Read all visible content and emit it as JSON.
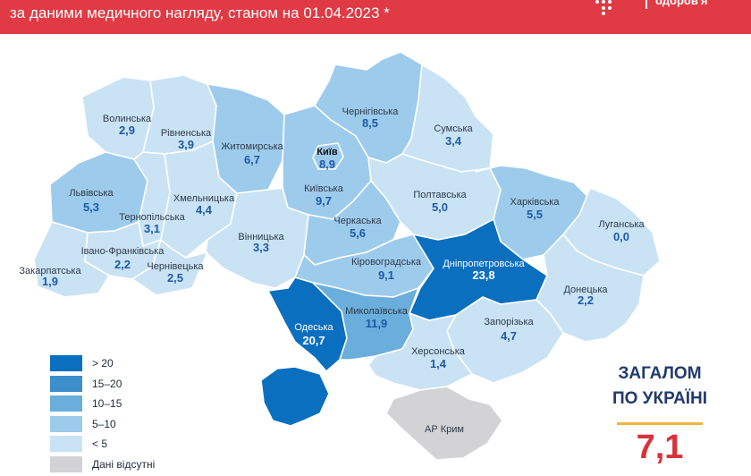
{
  "header": {
    "subtitle": "за даними медичного нагляду, станом на 01.04.2023 *",
    "logo_fragment": "одоров'я"
  },
  "colors": {
    "gt20": "#0b6fbf",
    "15_20": "#3d8fcc",
    "10_15": "#6aaedc",
    "5_10": "#9dcbec",
    "lt5": "#c9e3f5",
    "no_data": "#d3d3d6",
    "header_bg": "#e03a45"
  },
  "regions": [
    {
      "key": "volynska",
      "name": "Волинська",
      "value": "2,9"
    },
    {
      "key": "rivnenska",
      "name": "Рівненська",
      "value": "3,9"
    },
    {
      "key": "zhytomyrska",
      "name": "Житомирська",
      "value": "6,7"
    },
    {
      "key": "kyiv",
      "name": "Київ",
      "value": "8,9"
    },
    {
      "key": "chernihivska",
      "name": "Чернігівська",
      "value": "8,5"
    },
    {
      "key": "sumska",
      "name": "Сумська",
      "value": "3,4"
    },
    {
      "key": "lvivska",
      "name": "Львівська",
      "value": "5,3"
    },
    {
      "key": "khmelnytska",
      "name": "Хмельницька",
      "value": "4,4"
    },
    {
      "key": "ternopilska",
      "name": "Тернопільська",
      "value": "3,1"
    },
    {
      "key": "kyivska",
      "name": "Київська",
      "value": "9,7"
    },
    {
      "key": "poltavska",
      "name": "Полтавська",
      "value": "5,0"
    },
    {
      "key": "kharkivska",
      "name": "Харківська",
      "value": "5,5"
    },
    {
      "key": "luhanska",
      "name": "Луганська",
      "value": "0,0"
    },
    {
      "key": "cherkaska",
      "name": "Черкаська",
      "value": "5,6"
    },
    {
      "key": "vinnytska",
      "name": "Вінницька",
      "value": "3,3"
    },
    {
      "key": "ivano_frankivska",
      "name": "Івано-Франківська",
      "value": "2,2"
    },
    {
      "key": "zakarpatska",
      "name": "Закарпатська",
      "value": "1,9"
    },
    {
      "key": "chernivetska",
      "name": "Чернівецька",
      "value": "2,5"
    },
    {
      "key": "kirovohradska",
      "name": "Кіровоградська",
      "value": "9,1"
    },
    {
      "key": "dnipropetrovska",
      "name": "Дніпропетровська",
      "value": "23,8"
    },
    {
      "key": "donetska",
      "name": "Донецька",
      "value": "2,2"
    },
    {
      "key": "odeska",
      "name": "Одеська",
      "value": "20,7"
    },
    {
      "key": "mykolaivska",
      "name": "Миколаївська",
      "value": "11,9"
    },
    {
      "key": "zaporizka",
      "name": "Запорізька",
      "value": "4,7"
    },
    {
      "key": "khersonska",
      "name": "Херсонська",
      "value": "1,4"
    },
    {
      "key": "ar_krym",
      "name": "АР Крим",
      "value": ""
    }
  ],
  "legend": [
    {
      "label": "> 20",
      "color": "#0b6fbf"
    },
    {
      "label": "15–20",
      "color": "#3d8fcc"
    },
    {
      "label": "10–15",
      "color": "#6aaedc"
    },
    {
      "label": "5–10",
      "color": "#9dcbec"
    },
    {
      "label": "< 5",
      "color": "#c9e3f5"
    },
    {
      "label": "Дані відсутні",
      "color": "#d3d3d6"
    }
  ],
  "total": {
    "title_line1": "ЗАГАЛОМ",
    "title_line2": "ПО УКРАЇНІ",
    "value": "7,1"
  }
}
